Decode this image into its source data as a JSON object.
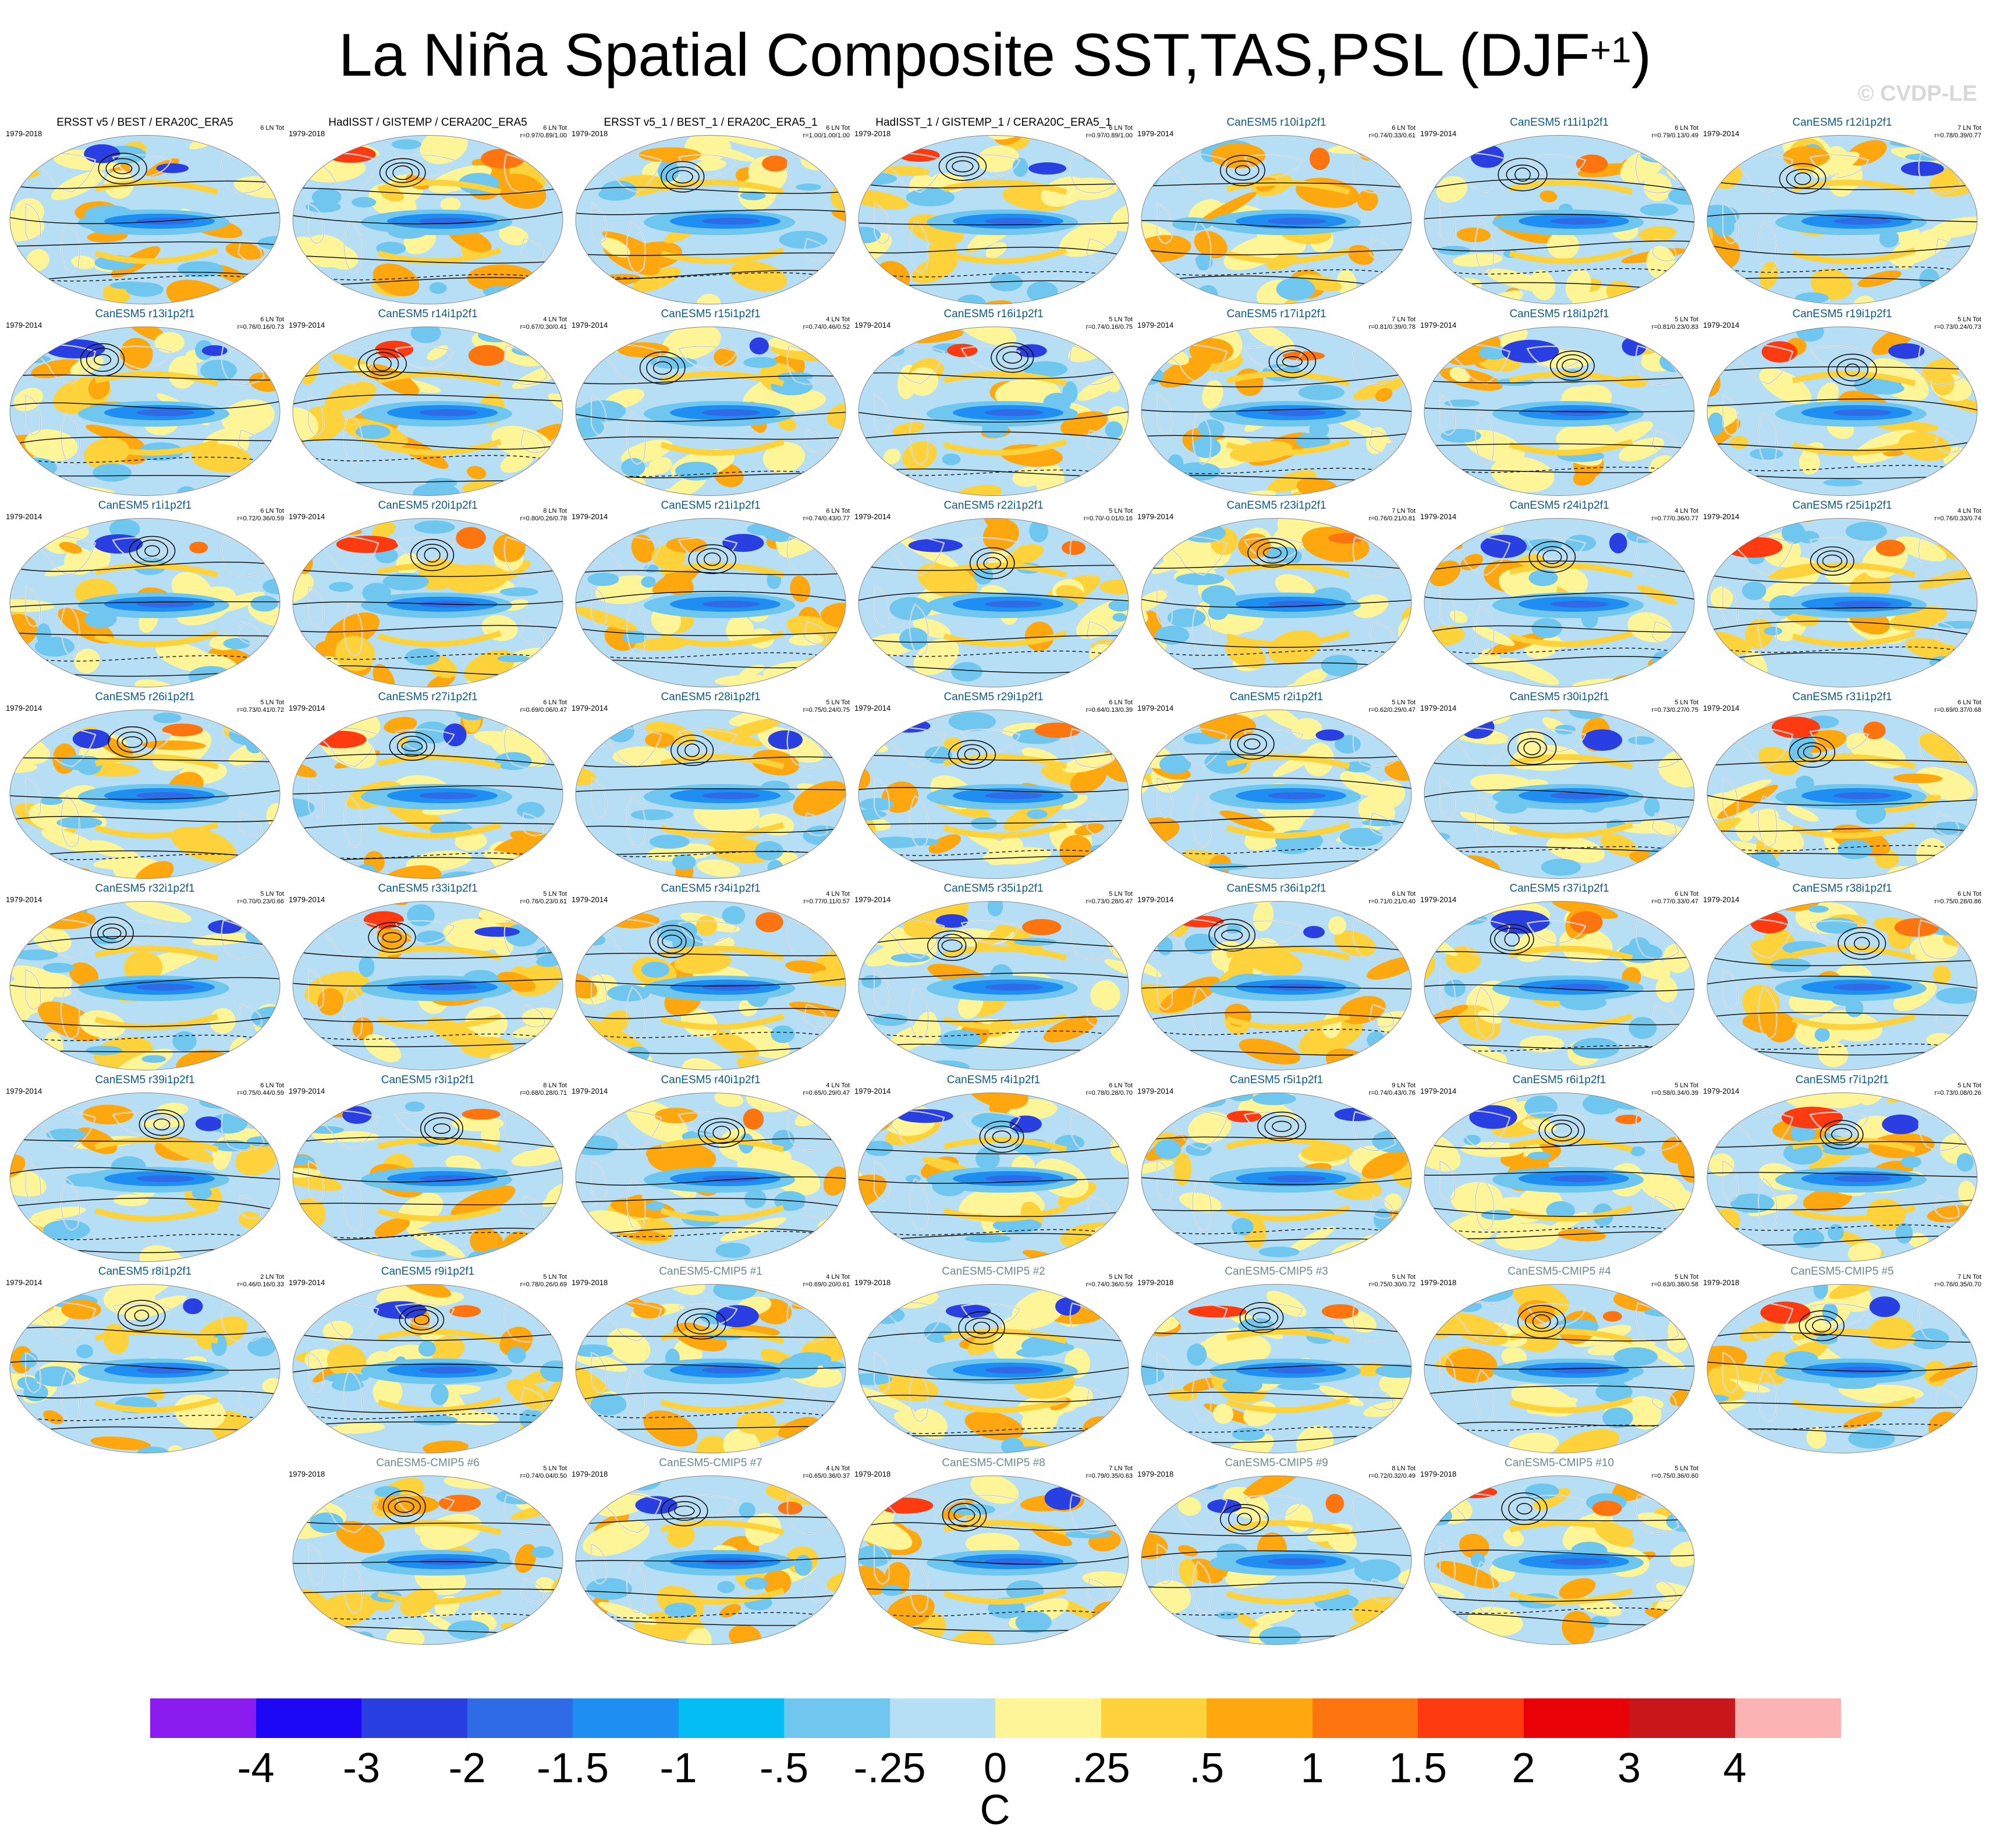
{
  "title_main": "La Niña Spatial Composite SST,TAS,PSL (DJF",
  "title_sup": "+1",
  "title_end": ")",
  "credit": "© CVDP-LE",
  "panels": [
    {
      "title": "ERSST v5 / BEST / ERA20C_ERA5",
      "period": "1979-2018",
      "count": "6 LN Tot",
      "r": "",
      "kind": "obs"
    },
    {
      "title": "HadISST / GISTEMP / CERA20C_ERA5",
      "period": "1979-2018",
      "count": "6 LN Tot",
      "r": "r=0.97/0.89/1.00",
      "kind": "obs"
    },
    {
      "title": "ERSST v5_1 / BEST_1 / ERA20C_ERA5_1",
      "period": "1979-2018",
      "count": "6 LN Tot",
      "r": "r=1.00/1.00/1.00",
      "kind": "obs"
    },
    {
      "title": "HadISST_1 / GISTEMP_1 / CERA20C_ERA5_1",
      "period": "1979-2018",
      "count": "6 LN Tot",
      "r": "r=0.97/0.89/1.00",
      "kind": "obs"
    },
    {
      "title": "CanESM5 r10i1p2f1",
      "period": "1979-2014",
      "count": "6 LN Tot",
      "r": "r=0.74/0.33/0.61",
      "kind": "mod"
    },
    {
      "title": "CanESM5 r11i1p2f1",
      "period": "1979-2014",
      "count": "6 LN Tot",
      "r": "r=0.79/0.13/0.49",
      "kind": "mod"
    },
    {
      "title": "CanESM5 r12i1p2f1",
      "period": "1979-2014",
      "count": "7 LN Tot",
      "r": "r=0.78/0.39/0.77",
      "kind": "mod"
    },
    {
      "title": "CanESM5 r13i1p2f1",
      "period": "1979-2014",
      "count": "6 LN Tot",
      "r": "r=0.76/0.16/0.73",
      "kind": "mod"
    },
    {
      "title": "CanESM5 r14i1p2f1",
      "period": "1979-2014",
      "count": "4 LN Tot",
      "r": "r=0.67/0.30/0.41",
      "kind": "mod"
    },
    {
      "title": "CanESM5 r15i1p2f1",
      "period": "1979-2014",
      "count": "4 LN Tot",
      "r": "r=0.74/0.46/0.52",
      "kind": "mod"
    },
    {
      "title": "CanESM5 r16i1p2f1",
      "period": "1979-2014",
      "count": "5 LN Tot",
      "r": "r=0.74/0.16/0.75",
      "kind": "mod"
    },
    {
      "title": "CanESM5 r17i1p2f1",
      "period": "1979-2014",
      "count": "7 LN Tot",
      "r": "r=0.81/0.39/0.78",
      "kind": "mod"
    },
    {
      "title": "CanESM5 r18i1p2f1",
      "period": "1979-2014",
      "count": "5 LN Tot",
      "r": "r=0.81/0.23/0.83",
      "kind": "mod"
    },
    {
      "title": "CanESM5 r19i1p2f1",
      "period": "1979-2014",
      "count": "5 LN Tot",
      "r": "r=0.73/0.24/0.73",
      "kind": "mod"
    },
    {
      "title": "CanESM5 r1i1p2f1",
      "period": "1979-2014",
      "count": "6 LN Tot",
      "r": "r=0.72/0.36/0.59",
      "kind": "mod"
    },
    {
      "title": "CanESM5 r20i1p2f1",
      "period": "1979-2014",
      "count": "8 LN Tot",
      "r": "r=0.80/0.26/0.78",
      "kind": "mod"
    },
    {
      "title": "CanESM5 r21i1p2f1",
      "period": "1979-2014",
      "count": "6 LN Tot",
      "r": "r=0.74/0.43/0.77",
      "kind": "mod"
    },
    {
      "title": "CanESM5 r22i1p2f1",
      "period": "1979-2014",
      "count": "5 LN Tot",
      "r": "r=0.70/-0.01/0.16",
      "kind": "mod"
    },
    {
      "title": "CanESM5 r23i1p2f1",
      "period": "1979-2014",
      "count": "7 LN Tot",
      "r": "r=0.76/0.21/0.81",
      "kind": "mod"
    },
    {
      "title": "CanESM5 r24i1p2f1",
      "period": "1979-2014",
      "count": "4 LN Tot",
      "r": "r=0.77/0.36/0.77",
      "kind": "mod"
    },
    {
      "title": "CanESM5 r25i1p2f1",
      "period": "1979-2014",
      "count": "4 LN Tot",
      "r": "r=0.76/0.33/0.74",
      "kind": "mod"
    },
    {
      "title": "CanESM5 r26i1p2f1",
      "period": "1979-2014",
      "count": "5 LN Tot",
      "r": "r=0.73/0.41/0.72",
      "kind": "mod"
    },
    {
      "title": "CanESM5 r27i1p2f1",
      "period": "1979-2014",
      "count": "6 LN Tot",
      "r": "r=0.69/0.06/0.47",
      "kind": "mod"
    },
    {
      "title": "CanESM5 r28i1p2f1",
      "period": "1979-2014",
      "count": "5 LN Tot",
      "r": "r=0.75/0.24/0.75",
      "kind": "mod"
    },
    {
      "title": "CanESM5 r29i1p2f1",
      "period": "1979-2014",
      "count": "6 LN Tot",
      "r": "r=0.64/0.13/0.39",
      "kind": "mod"
    },
    {
      "title": "CanESM5 r2i1p2f1",
      "period": "1979-2014",
      "count": "5 LN Tot",
      "r": "r=0.62/0.29/0.47",
      "kind": "mod"
    },
    {
      "title": "CanESM5 r30i1p2f1",
      "period": "1979-2014",
      "count": "5 LN Tot",
      "r": "r=0.73/0.27/0.75",
      "kind": "mod"
    },
    {
      "title": "CanESM5 r31i1p2f1",
      "period": "1979-2014",
      "count": "6 LN Tot",
      "r": "r=0.69/0.37/0.68",
      "kind": "mod"
    },
    {
      "title": "CanESM5 r32i1p2f1",
      "period": "1979-2014",
      "count": "5 LN Tot",
      "r": "r=0.70/0.23/0.66",
      "kind": "mod"
    },
    {
      "title": "CanESM5 r33i1p2f1",
      "period": "1979-2014",
      "count": "5 LN Tot",
      "r": "r=0.76/0.23/0.61",
      "kind": "mod"
    },
    {
      "title": "CanESM5 r34i1p2f1",
      "period": "1979-2014",
      "count": "4 LN Tot",
      "r": "r=0.77/0.11/0.57",
      "kind": "mod"
    },
    {
      "title": "CanESM5 r35i1p2f1",
      "period": "1979-2014",
      "count": "5 LN Tot",
      "r": "r=0.73/0.28/0.47",
      "kind": "mod"
    },
    {
      "title": "CanESM5 r36i1p2f1",
      "period": "1979-2014",
      "count": "6 LN Tot",
      "r": "r=0.71/0.21/0.40",
      "kind": "mod"
    },
    {
      "title": "CanESM5 r37i1p2f1",
      "period": "1979-2014",
      "count": "6 LN Tot",
      "r": "r=0.77/0.33/0.47",
      "kind": "mod"
    },
    {
      "title": "CanESM5 r38i1p2f1",
      "period": "1979-2014",
      "count": "6 LN Tot",
      "r": "r=0.75/0.28/0.86",
      "kind": "mod"
    },
    {
      "title": "CanESM5 r39i1p2f1",
      "period": "1979-2014",
      "count": "6 LN Tot",
      "r": "r=0.75/0.44/0.59",
      "kind": "mod"
    },
    {
      "title": "CanESM5 r3i1p2f1",
      "period": "1979-2014",
      "count": "8 LN Tot",
      "r": "r=0.68/0.28/0.71",
      "kind": "mod"
    },
    {
      "title": "CanESM5 r40i1p2f1",
      "period": "1979-2014",
      "count": "4 LN Tot",
      "r": "r=0.65/0.29/0.47",
      "kind": "mod"
    },
    {
      "title": "CanESM5 r4i1p2f1",
      "period": "1979-2014",
      "count": "6 LN Tot",
      "r": "r=0.78/0.28/0.70",
      "kind": "mod"
    },
    {
      "title": "CanESM5 r5i1p2f1",
      "period": "1979-2014",
      "count": "9 LN Tot",
      "r": "r=0.74/0.43/0.76",
      "kind": "mod"
    },
    {
      "title": "CanESM5 r6i1p2f1",
      "period": "1979-2014",
      "count": "5 LN Tot",
      "r": "r=0.58/0.34/0.39",
      "kind": "mod"
    },
    {
      "title": "CanESM5 r7i1p2f1",
      "period": "1979-2014",
      "count": "5 LN Tot",
      "r": "r=0.73/0.08/0.26",
      "kind": "mod"
    },
    {
      "title": "CanESM5 r8i1p2f1",
      "period": "1979-2014",
      "count": "2 LN Tot",
      "r": "r=0.46/0.16/0.33",
      "kind": "mod"
    },
    {
      "title": "CanESM5 r9i1p2f1",
      "period": "1979-2014",
      "count": "5 LN Tot",
      "r": "r=0.78/0.26/0.69",
      "kind": "mod"
    },
    {
      "title": "CanESM5-CMIP5 #1",
      "period": "1979-2018",
      "count": "4 LN Tot",
      "r": "r=0.69/0.20/0.61",
      "kind": "cmip"
    },
    {
      "title": "CanESM5-CMIP5 #2",
      "period": "1979-2018",
      "count": "5 LN Tot",
      "r": "r=0.74/0.36/0.59",
      "kind": "cmip"
    },
    {
      "title": "CanESM5-CMIP5 #3",
      "period": "1979-2018",
      "count": "5 LN Tot",
      "r": "r=0.75/0.30/0.72",
      "kind": "cmip"
    },
    {
      "title": "CanESM5-CMIP5 #4",
      "period": "1979-2018",
      "count": "5 LN Tot",
      "r": "r=0.63/0.38/0.58",
      "kind": "cmip"
    },
    {
      "title": "CanESM5-CMIP5 #5",
      "period": "1979-2018",
      "count": "7 LN Tot",
      "r": "r=0.76/0.35/0.70",
      "kind": "cmip"
    },
    {
      "title": "CanESM5-CMIP5 #6",
      "period": "1979-2018",
      "count": "5 LN Tot",
      "r": "r=0.74/0.04/0.50",
      "kind": "cmip"
    },
    {
      "title": "CanESM5-CMIP5 #7",
      "period": "1979-2018",
      "count": "4 LN Tot",
      "r": "r=0.65/0.36/0.37",
      "kind": "cmip"
    },
    {
      "title": "CanESM5-CMIP5 #8",
      "period": "1979-2018",
      "count": "7 LN Tot",
      "r": "r=0.79/0.35/0.63",
      "kind": "cmip"
    },
    {
      "title": "CanESM5-CMIP5 #9",
      "period": "1979-2018",
      "count": "8 LN Tot",
      "r": "r=0.72/0.32/0.49",
      "kind": "cmip"
    },
    {
      "title": "CanESM5-CMIP5 #10",
      "period": "1979-2018",
      "count": "5 LN Tot",
      "r": "r=0.75/0.36/0.60",
      "kind": "cmip"
    }
  ],
  "colorbar": {
    "ticks": [
      "-4",
      "-3",
      "-2",
      "-1.5",
      "-1",
      "-.5",
      "-.25",
      "0",
      ".25",
      ".5",
      "1",
      "1.5",
      "2",
      "3",
      "4"
    ],
    "colors": [
      "#8a1cf0",
      "#1d08f5",
      "#2a3fe2",
      "#2f6be6",
      "#1e8ef2",
      "#05bdf5",
      "#6fc7f0",
      "#b6def4",
      "#fdf598",
      "#fed23a",
      "#fea70f",
      "#fe7510",
      "#fe3a10",
      "#e80207",
      "#c8171b",
      "#fcb3b3"
    ],
    "units": "C"
  },
  "chart_data": {
    "type": "heatmap",
    "title": "La Niña Spatial Composite SST,TAS,PSL (DJF+1)",
    "xlabel": "",
    "ylabel": "",
    "panel_count": 54,
    "colorbar_ticks": [
      -4,
      -3,
      -2,
      -1.5,
      -1,
      -0.5,
      -0.25,
      0,
      0.25,
      0.5,
      1,
      1.5,
      2,
      3,
      4
    ],
    "units": "C"
  }
}
